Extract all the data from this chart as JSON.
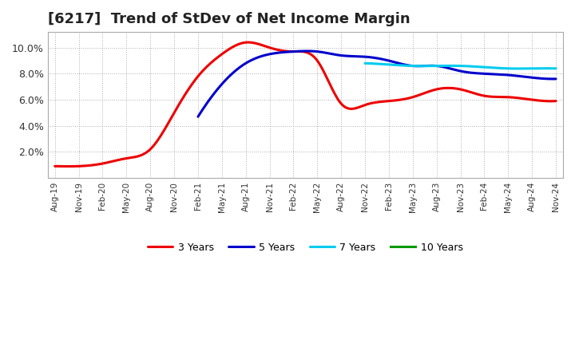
{
  "title": "[6217]  Trend of StDev of Net Income Margin",
  "title_fontsize": 13,
  "background_color": "#ffffff",
  "plot_background": "#ffffff",
  "grid_color": "#999999",
  "x_labels": [
    "Aug-19",
    "Nov-19",
    "Feb-20",
    "May-20",
    "Aug-20",
    "Nov-20",
    "Feb-21",
    "May-21",
    "Aug-21",
    "Nov-21",
    "Feb-22",
    "May-22",
    "Aug-22",
    "Nov-22",
    "Feb-23",
    "May-23",
    "Aug-23",
    "Nov-23",
    "Feb-24",
    "May-24",
    "Aug-24",
    "Nov-24"
  ],
  "y_ticks": [
    0.0,
    0.02,
    0.04,
    0.06,
    0.08,
    0.1
  ],
  "y_labels": [
    "",
    "2.0%",
    "4.0%",
    "6.0%",
    "8.0%",
    "10.0%"
  ],
  "ylim": [
    0.0,
    0.112
  ],
  "series": {
    "3 Years": {
      "color": "#ee0000",
      "data_x": [
        0,
        1,
        2,
        3,
        4,
        5,
        6,
        7,
        8,
        9,
        10,
        11,
        12,
        13,
        14,
        15,
        16,
        17,
        18,
        19,
        20,
        21
      ],
      "data_y": [
        0.009,
        0.009,
        0.011,
        0.015,
        0.022,
        0.05,
        0.078,
        0.095,
        0.104,
        0.1,
        0.097,
        0.09,
        0.057,
        0.056,
        0.059,
        0.062,
        0.068,
        0.068,
        0.063,
        0.062,
        0.06,
        0.059
      ]
    },
    "5 Years": {
      "color": "#0000cc",
      "data_x": [
        6,
        7,
        8,
        9,
        10,
        11,
        12,
        13,
        14,
        15,
        16,
        17,
        18,
        19,
        20,
        21
      ],
      "data_y": [
        0.047,
        0.072,
        0.088,
        0.095,
        0.097,
        0.097,
        0.094,
        0.093,
        0.09,
        0.086,
        0.086,
        0.082,
        0.08,
        0.079,
        0.077,
        0.076
      ]
    },
    "7 Years": {
      "color": "#00ccee",
      "data_x": [
        13,
        14,
        15,
        16,
        17,
        18,
        19,
        20,
        21
      ],
      "data_y": [
        0.088,
        0.087,
        0.086,
        0.086,
        0.086,
        0.085,
        0.084,
        0.084,
        0.084
      ]
    },
    "10 Years": {
      "color": "#009900",
      "data_x": [],
      "data_y": []
    }
  },
  "legend_linewidth": 2.0,
  "linewidth": 2.2
}
